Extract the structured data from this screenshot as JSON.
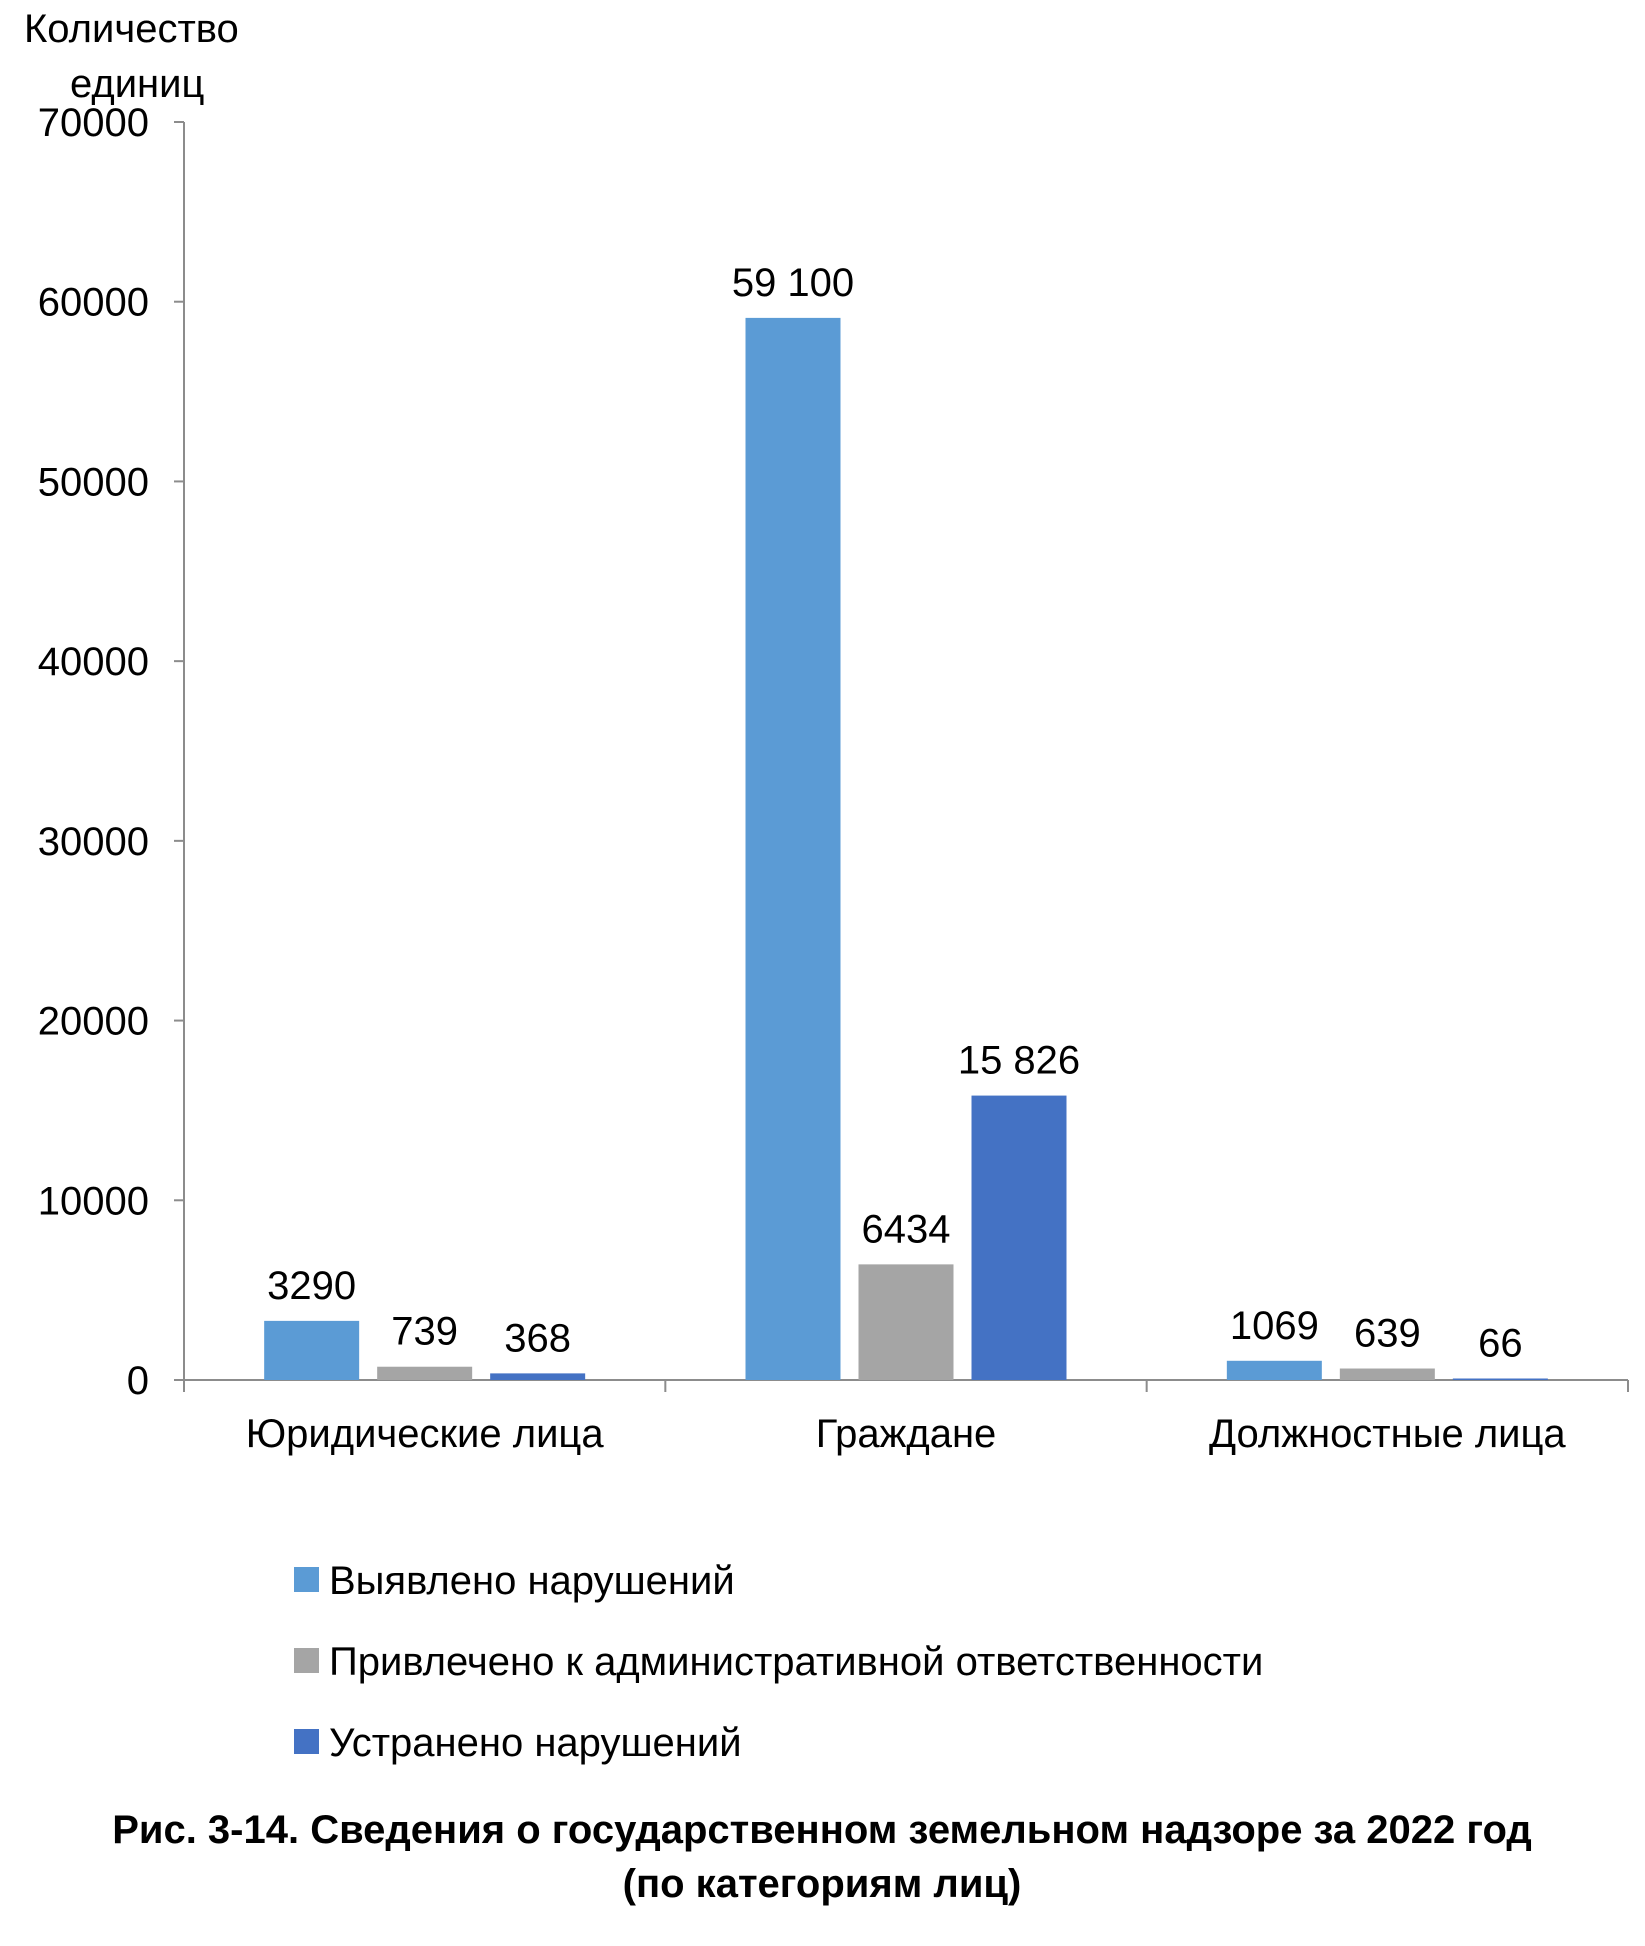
{
  "chart_data": {
    "type": "bar",
    "title": "Рис. 3-14. Сведения о государственном земельном надзоре за 2022 год",
    "subtitle": "(по категориям лиц)",
    "ylabel": [
      "Количество",
      "единиц"
    ],
    "xlabel": "",
    "ylim": [
      0,
      70000
    ],
    "yticks": [
      0,
      10000,
      20000,
      30000,
      40000,
      50000,
      60000,
      70000
    ],
    "grid": false,
    "legend_position": "bottom",
    "categories": [
      "Юридические лица",
      "Граждане",
      "Должностные лица"
    ],
    "series": [
      {
        "name": "Выявлено нарушений",
        "color": "#5b9bd5",
        "values": [
          3290,
          59100,
          1069
        ],
        "labels": [
          "3290",
          "59 100",
          "1069"
        ]
      },
      {
        "name": "Привлечено к административной ответственности",
        "color": "#a5a5a5",
        "values": [
          739,
          6434,
          639
        ],
        "labels": [
          "739",
          "6434",
          "639"
        ]
      },
      {
        "name": "Устранено нарушений",
        "color": "#4472c4",
        "values": [
          368,
          15826,
          66
        ],
        "labels": [
          "368",
          "15 826",
          "66"
        ]
      }
    ]
  }
}
